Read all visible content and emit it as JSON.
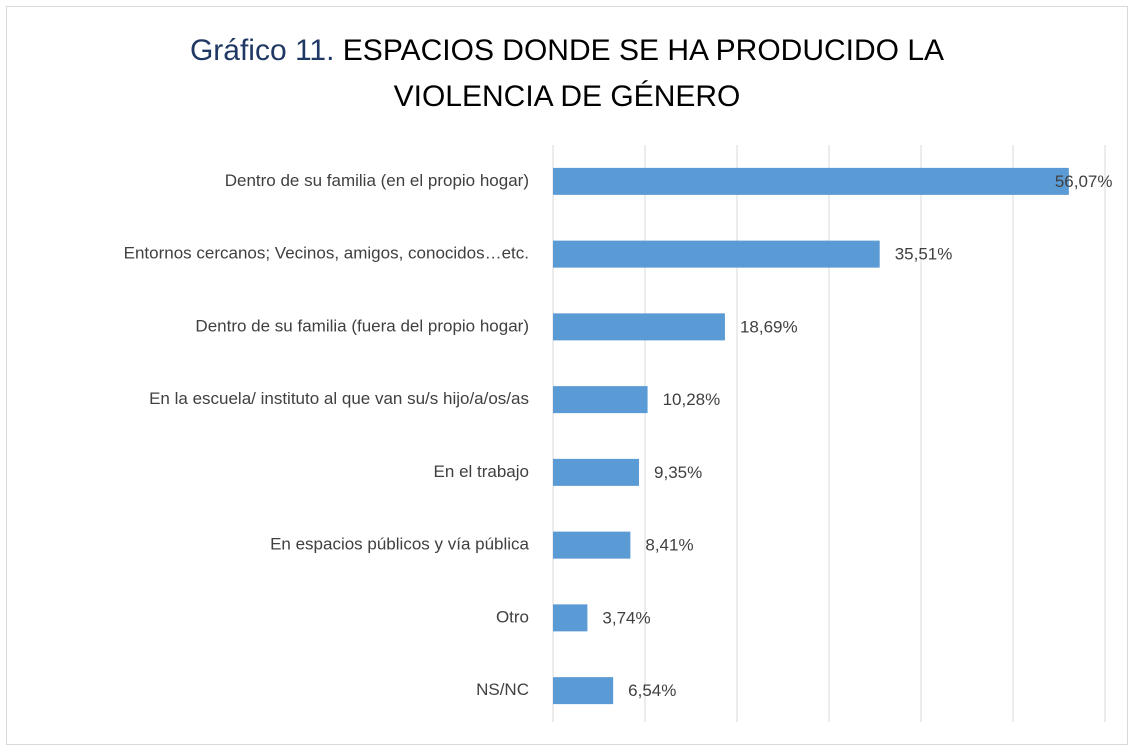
{
  "chart_data": {
    "type": "hbar",
    "title": {
      "number": "Gráfico 11.",
      "text": "ESPACIOS DONDE SE HA PRODUCIDO LA VIOLENCIA DE GÉNERO"
    },
    "categories": [
      "Dentro de su familia (en el propio hogar)",
      "Entornos cercanos; Vecinos, amigos, conocidos…etc.",
      "Dentro de su familia (fuera del propio hogar)",
      "En la escuela/ instituto al que van su/s hijo/a/os/as",
      "En el trabajo",
      "En espacios públicos y vía pública",
      "Otro",
      "NS/NC"
    ],
    "values": [
      56.07,
      35.51,
      18.69,
      10.28,
      9.35,
      8.41,
      3.74,
      6.54
    ],
    "value_labels": [
      "56,07%",
      "35,51%",
      "18,69%",
      "10,28%",
      "9,35%",
      "8,41%",
      "3,74%",
      "6,54%"
    ],
    "color": "#5b9bd5",
    "xlim": [
      0,
      60
    ],
    "xticks": [
      0,
      10,
      20,
      30,
      40,
      50,
      60
    ],
    "grid": true
  }
}
